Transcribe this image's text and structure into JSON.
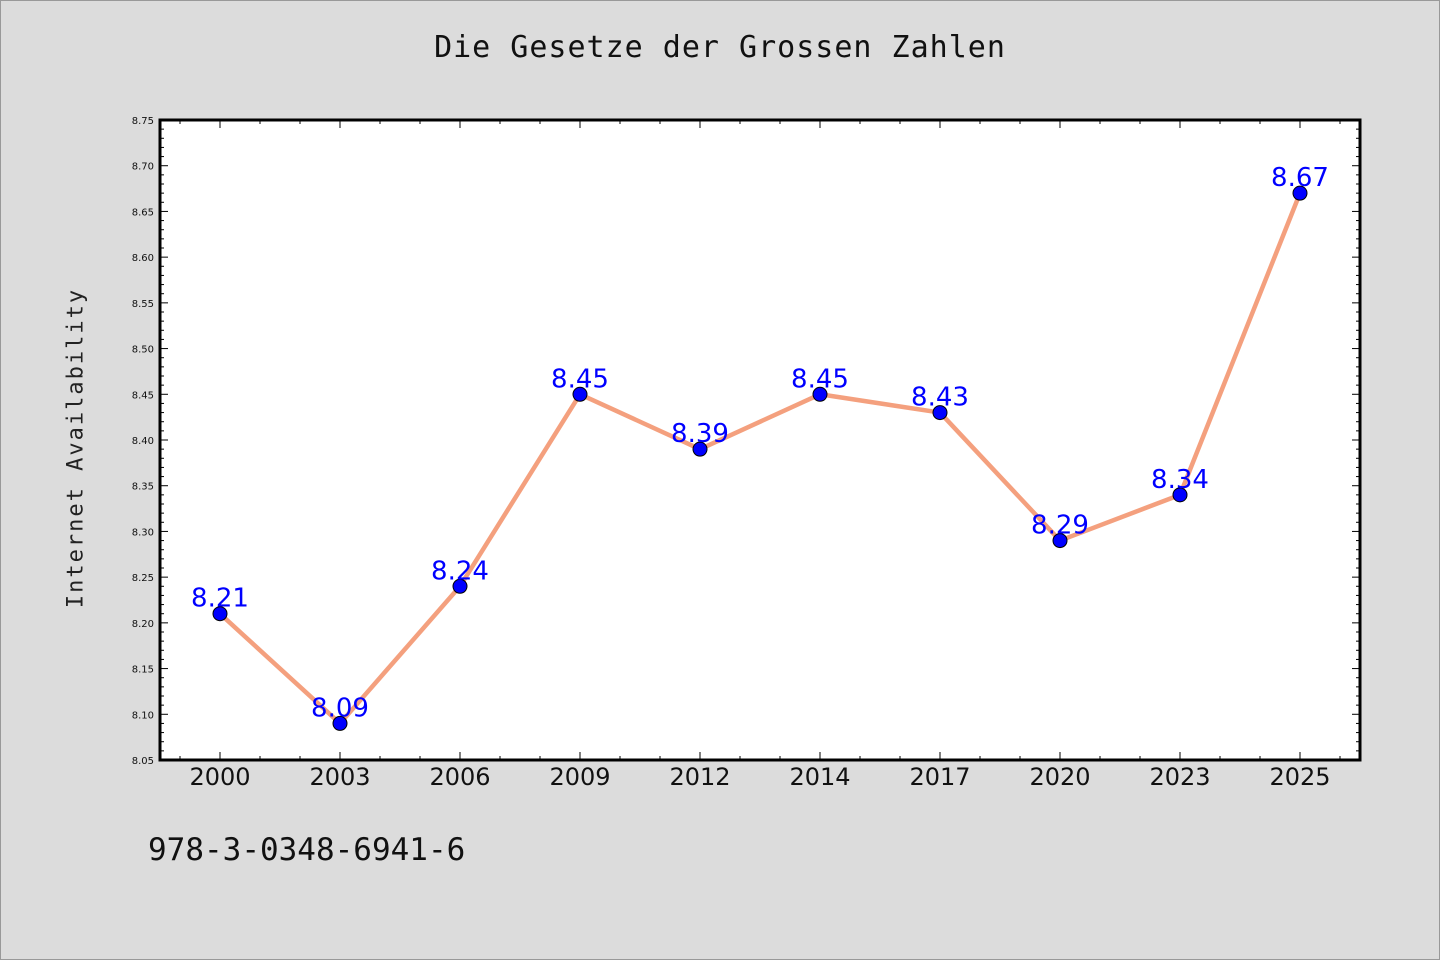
{
  "chart_data": {
    "type": "line",
    "title": "Die Gesetze der Grossen Zahlen",
    "xlabel": "",
    "ylabel": "Internet Availability",
    "categories": [
      "2000",
      "2003",
      "2006",
      "2009",
      "2012",
      "2014",
      "2017",
      "2020",
      "2023",
      "2025"
    ],
    "series": [
      {
        "values": [
          8.21,
          8.09,
          8.24,
          8.45,
          8.39,
          8.45,
          8.43,
          8.29,
          8.34,
          8.67
        ]
      }
    ],
    "ylim": [
      8.05,
      8.75
    ],
    "yticks": [
      "8.05",
      "8.10",
      "8.15",
      "8.20",
      "8.25",
      "8.30",
      "8.35",
      "8.40",
      "8.45",
      "8.50",
      "8.55",
      "8.60",
      "8.65",
      "8.70",
      "8.75"
    ],
    "data_labels": [
      "8.21",
      "8.09",
      "8.24",
      "8.45",
      "8.39",
      "8.45",
      "8.43",
      "8.29",
      "8.34",
      "8.67"
    ],
    "grid": false,
    "legend": "none",
    "colors": {
      "line": "#f4a07e",
      "marker": "#0000ff",
      "label": "#0000ff",
      "background": "#dcdcdc",
      "plot_area": "#ffffff"
    }
  },
  "footer": {
    "code": "978-3-0348-6941-6"
  }
}
